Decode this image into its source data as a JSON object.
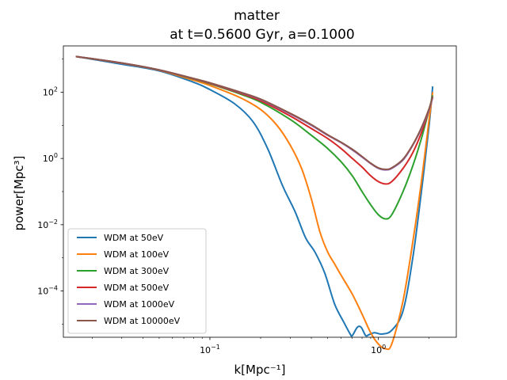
{
  "chart_data": {
    "type": "line",
    "title": "matter",
    "subtitle": "at t=0.5600 Gyr, a=0.1000",
    "xlabel": "k[Mpc⁻¹]",
    "ylabel": "power[Mpc³]",
    "xscale": "log",
    "yscale": "log",
    "xlim": [
      0.0135,
      2.9
    ],
    "ylim": [
      4e-06,
      2500
    ],
    "x_ticks": [
      {
        "value": 0.1,
        "base": "10",
        "exp": "−1"
      },
      {
        "value": 1,
        "base": "10",
        "exp": "0"
      }
    ],
    "y_ticks": [
      {
        "value": 0.0001,
        "base": "10",
        "exp": "−4"
      },
      {
        "value": 0.01,
        "base": "10",
        "exp": "−2"
      },
      {
        "value": 1,
        "base": "10",
        "exp": "0"
      },
      {
        "value": 100,
        "base": "10",
        "exp": "2"
      }
    ],
    "grid": false,
    "legend_position": "lower-left",
    "series": [
      {
        "name": "WDM at 50eV",
        "color": "#1f77b4",
        "x": [
          0.016,
          0.03,
          0.05,
          0.08,
          0.1,
          0.14,
          0.18,
          0.22,
          0.27,
          0.32,
          0.37,
          0.42,
          0.48,
          0.55,
          0.62,
          0.68,
          0.7,
          0.75,
          0.79,
          0.84,
          0.88,
          0.95,
          1.05,
          1.2,
          1.4,
          1.6,
          1.8,
          2.0,
          2.1
        ],
        "y": [
          1200,
          700,
          440,
          200,
          120,
          45,
          13,
          2,
          0.15,
          0.025,
          0.004,
          0.0015,
          0.00035,
          4e-05,
          1.2e-05,
          5e-06,
          4.5e-06,
          8e-06,
          8e-06,
          4.5e-06,
          4.8e-06,
          5.5e-06,
          5e-06,
          6.5e-06,
          2.5e-05,
          0.001,
          0.1,
          10,
          150
        ]
      },
      {
        "name": "WDM at 100eV",
        "color": "#ff7f0e",
        "x": [
          0.016,
          0.03,
          0.05,
          0.08,
          0.1,
          0.15,
          0.2,
          0.25,
          0.3,
          0.35,
          0.4,
          0.45,
          0.5,
          0.55,
          0.6,
          0.7,
          0.8,
          0.9,
          1.0,
          1.1,
          1.2,
          1.4,
          1.6,
          1.8,
          2.0,
          2.1
        ],
        "y": [
          1200,
          750,
          460,
          230,
          160,
          70,
          30,
          10,
          2.5,
          0.5,
          0.06,
          0.006,
          0.0015,
          0.00065,
          0.0003,
          8e-05,
          2e-05,
          5.5e-06,
          2.5e-06,
          1.8e-06,
          2.5e-06,
          5e-05,
          0.003,
          0.2,
          15,
          100
        ]
      },
      {
        "name": "WDM at 300eV",
        "color": "#2ca02c",
        "x": [
          0.016,
          0.03,
          0.05,
          0.08,
          0.1,
          0.15,
          0.2,
          0.3,
          0.4,
          0.5,
          0.6,
          0.7,
          0.8,
          0.9,
          1.0,
          1.1,
          1.2,
          1.4,
          1.6,
          1.8,
          2.0,
          2.1
        ],
        "y": [
          1200,
          760,
          470,
          250,
          180,
          90,
          50,
          15,
          5,
          2,
          0.8,
          0.3,
          0.1,
          0.04,
          0.02,
          0.015,
          0.02,
          0.1,
          0.6,
          4,
          30,
          80
        ]
      },
      {
        "name": "WDM at 500eV",
        "color": "#d62728",
        "x": [
          0.016,
          0.03,
          0.05,
          0.08,
          0.1,
          0.15,
          0.2,
          0.3,
          0.4,
          0.5,
          0.6,
          0.7,
          0.8,
          0.9,
          1.0,
          1.1,
          1.2,
          1.4,
          1.6,
          1.8,
          2.0,
          2.1
        ],
        "y": [
          1200,
          760,
          470,
          255,
          185,
          95,
          55,
          19,
          8,
          4,
          2,
          1,
          0.55,
          0.3,
          0.2,
          0.17,
          0.2,
          0.5,
          1.5,
          6,
          30,
          70
        ]
      },
      {
        "name": "WDM at 1000eV",
        "color": "#9467bd",
        "x": [
          0.016,
          0.03,
          0.05,
          0.08,
          0.1,
          0.15,
          0.2,
          0.3,
          0.4,
          0.5,
          0.6,
          0.7,
          0.8,
          0.9,
          1.0,
          1.1,
          1.2,
          1.4,
          1.6,
          1.8,
          2.0,
          2.1
        ],
        "y": [
          1200,
          760,
          470,
          258,
          190,
          100,
          60,
          22,
          10,
          5,
          3,
          1.8,
          1.1,
          0.7,
          0.5,
          0.45,
          0.5,
          0.9,
          2.5,
          8,
          30,
          70
        ]
      },
      {
        "name": "WDM at 10000eV",
        "color": "#8c564b",
        "x": [
          0.016,
          0.03,
          0.05,
          0.08,
          0.1,
          0.15,
          0.2,
          0.3,
          0.4,
          0.5,
          0.6,
          0.7,
          0.8,
          0.9,
          1.0,
          1.1,
          1.2,
          1.4,
          1.6,
          1.8,
          2.0,
          2.1
        ],
        "y": [
          1200,
          760,
          470,
          260,
          192,
          102,
          62,
          23,
          10.5,
          5.2,
          3.1,
          1.9,
          1.15,
          0.72,
          0.52,
          0.47,
          0.52,
          0.95,
          2.6,
          8.5,
          32,
          75
        ]
      }
    ]
  }
}
